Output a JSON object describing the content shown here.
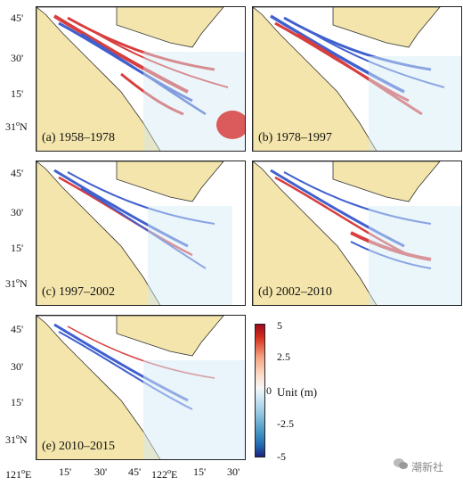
{
  "panels": [
    {
      "id": "a",
      "label": "(a) 1958–1978"
    },
    {
      "id": "b",
      "label": "(b) 1978–1997"
    },
    {
      "id": "c",
      "label": "(c) 1997–2002"
    },
    {
      "id": "d",
      "label": "(d) 2002–2010"
    },
    {
      "id": "e",
      "label": "(e) 2010–2015"
    }
  ],
  "lat_ticks": [
    "45'",
    "30'",
    "15'"
  ],
  "lat_base": "31",
  "lat_base_sup": "o",
  "lat_base_suffix": "N",
  "lon_ticks": {
    "start": "121",
    "start_sup": "o",
    "start_suffix": "E",
    "t1": "15'",
    "t2": "30'",
    "t3": "45'",
    "mid": "122",
    "mid_sup": "o",
    "mid_suffix": "E",
    "t4": "15'",
    "t5": "30'"
  },
  "colorbar": {
    "ticks": [
      "5",
      "2.5",
      "0",
      "-2.5",
      "-5"
    ],
    "unit_label": "Unit (m)",
    "colors": {
      "max": "#9e0a1e",
      "zero": "#f7f7f7",
      "min": "#1a237e"
    }
  },
  "watermark": "潮新社",
  "colors": {
    "land": "#f3e5ab",
    "coast": "#333333",
    "erosion": "#2c4fc9",
    "deposition": "#d42a2a"
  }
}
